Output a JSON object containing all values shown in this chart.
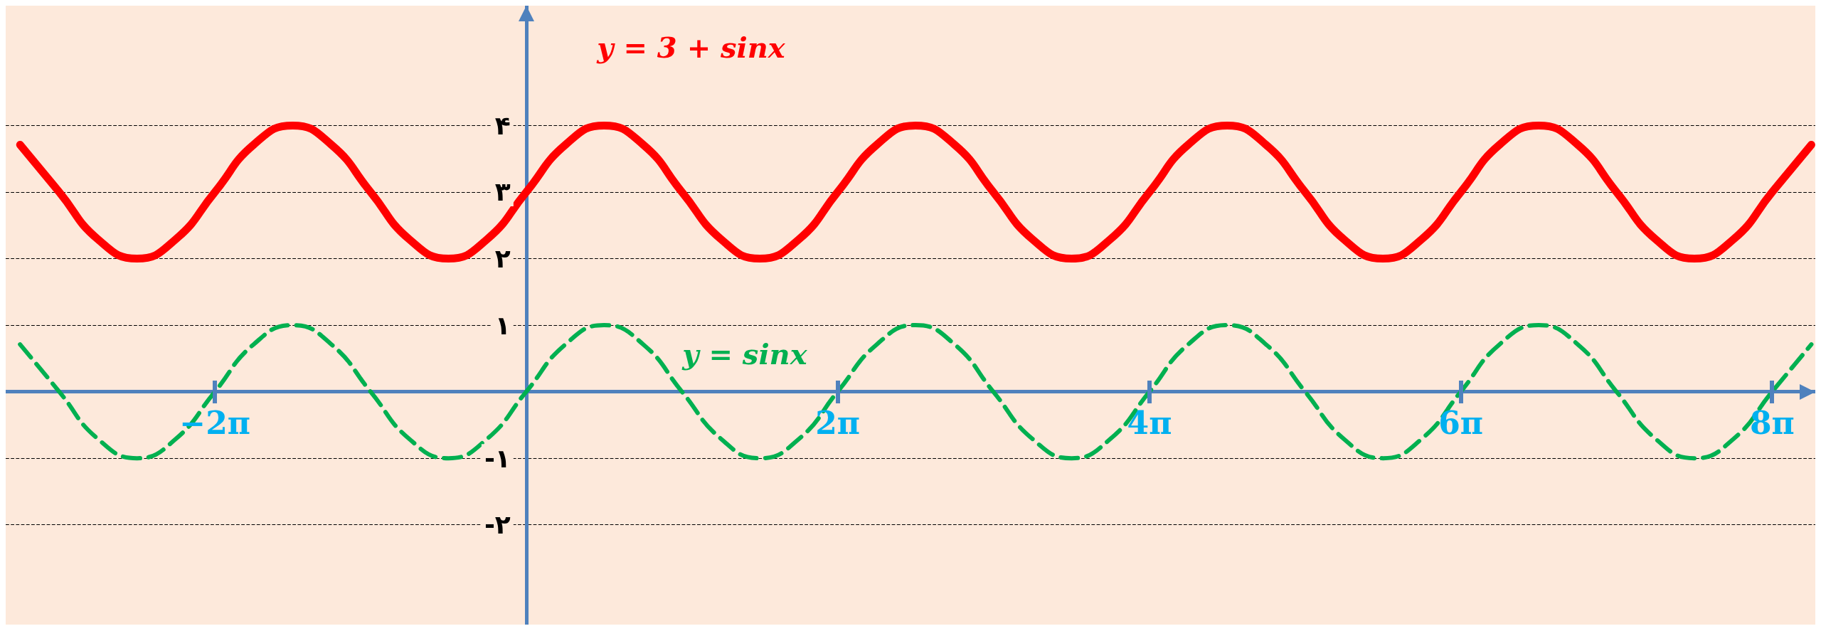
{
  "chart_data": {
    "type": "line",
    "marker": "none",
    "grid": "y",
    "xlim": [
      -10.5,
      26
    ],
    "ylim": [
      -3.5,
      5.8
    ],
    "xticks": [
      {
        "value": -6.28,
        "label": "−2π"
      },
      {
        "value": 6.28,
        "label": "2π"
      },
      {
        "value": 12.57,
        "label": "4π"
      },
      {
        "value": 18.85,
        "label": "6π"
      },
      {
        "value": 25.13,
        "label": "8π"
      }
    ],
    "yticks": [
      {
        "value": -2,
        "label": "-۲"
      },
      {
        "value": -1,
        "label": "-۱"
      },
      {
        "value": 1,
        "label": "۱"
      },
      {
        "value": 2,
        "label": "۲"
      },
      {
        "value": 3,
        "label": "۳"
      },
      {
        "value": 4,
        "label": "۴"
      }
    ],
    "x": [
      -10.21,
      -9.42,
      -8.64,
      -7.85,
      -7.07,
      -6.28,
      -5.5,
      -4.71,
      -3.93,
      -3.14,
      -2.36,
      -1.57,
      -0.79,
      0,
      0.79,
      1.57,
      2.36,
      3.14,
      3.93,
      4.71,
      5.5,
      6.28,
      7.07,
      7.85,
      8.64,
      9.42,
      10.21,
      11,
      11.78,
      12.57,
      13.35,
      14.14,
      14.92,
      15.71,
      16.49,
      17.28,
      18.06,
      18.85,
      19.63,
      20.42,
      21.21,
      21.99,
      22.78,
      23.56,
      24.35,
      25.13,
      25.92
    ],
    "series": [
      {
        "name": "y = 3 + sinx",
        "color": "#ff0000",
        "line_style": "solid",
        "values": [
          3.71,
          3,
          2.29,
          2,
          2.29,
          3,
          3.71,
          4,
          3.71,
          3,
          2.29,
          2,
          2.29,
          3,
          3.71,
          4,
          3.71,
          3,
          2.29,
          2,
          2.29,
          3,
          3.71,
          4,
          3.71,
          3,
          2.29,
          2,
          2.29,
          3,
          3.71,
          4,
          3.71,
          3,
          2.29,
          2,
          2.29,
          3,
          3.71,
          4,
          3.71,
          3,
          2.29,
          2,
          2.29,
          3,
          3.71
        ]
      },
      {
        "name": "y = sinx",
        "color": "#00b050",
        "line_style": "dashed",
        "values": [
          0.71,
          0,
          -0.71,
          -1,
          -0.71,
          0,
          0.71,
          1,
          0.71,
          0,
          -0.71,
          -1,
          -0.71,
          0,
          0.71,
          1,
          0.71,
          0,
          -0.71,
          -1,
          -0.71,
          0,
          0.71,
          1,
          0.71,
          0,
          -0.71,
          -1,
          -0.71,
          0,
          0.71,
          1,
          0.71,
          0,
          -0.71,
          -1,
          -0.71,
          0,
          0.71,
          1,
          0.71,
          0,
          -0.71,
          -1,
          -0.71,
          0,
          0.71
        ]
      }
    ]
  }
}
